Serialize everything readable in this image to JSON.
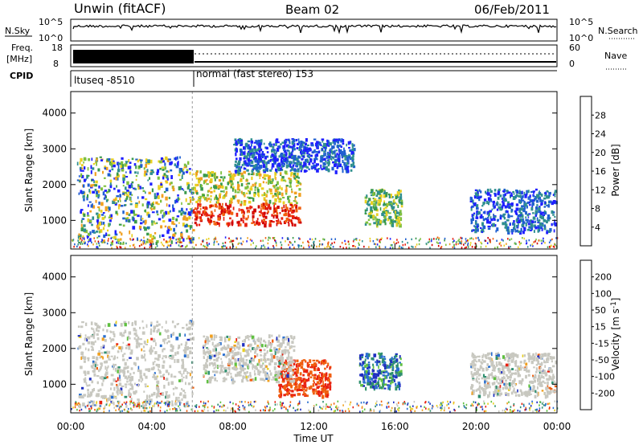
{
  "header": {
    "station": "Unwin (fitACF)",
    "beam": "Beam 02",
    "date": "06/Feb/2011"
  },
  "top_panels": {
    "nsky_label": "N.Sky",
    "nsky_ticks": [
      "10^5",
      "10^0"
    ],
    "nsearch_label": "N.Search",
    "nsearch_ticks": [
      "10^5",
      "10^0"
    ],
    "freq_label_1": "Freq.",
    "freq_label_2": "[MHz]",
    "freq_ticks": [
      "18",
      "8"
    ],
    "nave_label": "Nave",
    "nave_ticks": [
      "60",
      "0"
    ],
    "cpid_label": "CPID",
    "cpid_segments": [
      "ltuseq -8510",
      "normal (fast stereo) 153"
    ]
  },
  "chart_data": [
    {
      "type": "heatmap",
      "title": "",
      "ylabel": "Slant Range [km]",
      "xlabel": "",
      "ylim": [
        200,
        4600
      ],
      "yticks": [
        "1000",
        "2000",
        "3000",
        "4000"
      ],
      "colorbar": {
        "label": "Power [dB]",
        "ticks": [
          "4",
          "8",
          "12",
          "16",
          "20",
          "24",
          "28"
        ],
        "colors": [
          "#1f1fff",
          "#1f5fd0",
          "#2f8f8f",
          "#3a9a4a",
          "#7fc040",
          "#e8d020",
          "#f0a020",
          "#f06010",
          "#e82010",
          "#d00000"
        ]
      },
      "regions": [
        {
          "t0": 0.3,
          "t1": 6.0,
          "r0": 400,
          "r1": 2800,
          "level": "mixed"
        },
        {
          "t0": 6.0,
          "t1": 11.3,
          "r0": 900,
          "r1": 2400,
          "level": "high"
        },
        {
          "t0": 8.0,
          "t1": 14.0,
          "r0": 2400,
          "r1": 3300,
          "level": "low"
        },
        {
          "t0": 14.5,
          "t1": 16.3,
          "r0": 900,
          "r1": 1900,
          "level": "mid"
        },
        {
          "t0": 19.7,
          "t1": 23.9,
          "r0": 700,
          "r1": 1900,
          "level": "low"
        }
      ]
    },
    {
      "type": "heatmap",
      "title": "",
      "ylabel": "Slant Range [km]",
      "xlabel": "Time UT",
      "ylim": [
        200,
        4600
      ],
      "yticks": [
        "1000",
        "2000",
        "3000",
        "4000"
      ],
      "xticks": [
        "00:00",
        "04:00",
        "08:00",
        "12:00",
        "16:00",
        "20:00",
        "00:00"
      ],
      "xlim_hours": [
        0,
        24
      ],
      "colorbar": {
        "label": "Velocity [m s^-1]",
        "ticks": [
          "200",
          "100",
          "50",
          "15",
          "-15",
          "-50",
          "-100",
          "-200"
        ],
        "colors": [
          "#2030c0",
          "#2a6fd0",
          "#2f8f6f",
          "#5fc040",
          "#c8c8c0",
          "#e8d020",
          "#f0a020",
          "#f06010",
          "#e82010"
        ]
      },
      "regions": [
        {
          "t0": 0.3,
          "t1": 6.0,
          "r0": 400,
          "r1": 2800,
          "level": "neutral"
        },
        {
          "t0": 10.2,
          "t1": 12.8,
          "r0": 700,
          "r1": 1700,
          "level": "negative"
        },
        {
          "t0": 14.2,
          "t1": 16.3,
          "r0": 900,
          "r1": 1900,
          "level": "positive"
        },
        {
          "t0": 6.5,
          "t1": 11.0,
          "r0": 1100,
          "r1": 2400,
          "level": "neutral"
        },
        {
          "t0": 19.7,
          "t1": 23.9,
          "r0": 700,
          "r1": 1900,
          "level": "neutral"
        }
      ]
    }
  ]
}
